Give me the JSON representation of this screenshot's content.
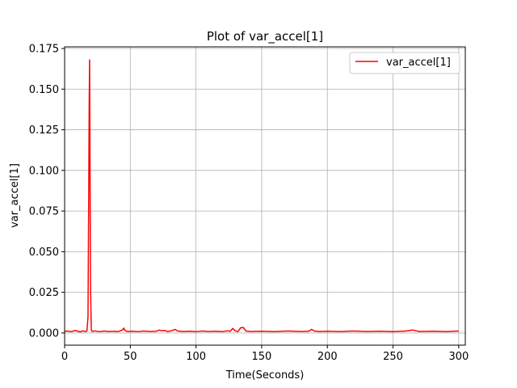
{
  "chart_data": {
    "type": "line",
    "title": "Plot of var_accel[1]",
    "xlabel": "Time(Seconds)",
    "ylabel": "var_accel[1]",
    "xlim": [
      0,
      305
    ],
    "ylim": [
      -0.0075,
      0.176
    ],
    "xticks": [
      0,
      50,
      100,
      150,
      200,
      250,
      300
    ],
    "xtick_labels": [
      "0",
      "50",
      "100",
      "150",
      "200",
      "250",
      "300"
    ],
    "yticks": [
      0.0,
      0.025,
      0.05,
      0.075,
      0.1,
      0.125,
      0.15,
      0.175
    ],
    "ytick_labels": [
      "0.000",
      "0.025",
      "0.050",
      "0.075",
      "0.100",
      "0.125",
      "0.150",
      "0.175"
    ],
    "grid": true,
    "legend_position": "top-right",
    "series": [
      {
        "name": "var_accel[1]",
        "color": "#ff0000",
        "x": [
          0,
          2,
          5,
          8,
          10,
          12,
          14,
          16,
          17,
          17.8,
          18.3,
          18.7,
          19,
          19.3,
          19.7,
          20.3,
          21,
          23,
          26,
          30,
          34,
          38,
          40,
          42,
          44,
          45,
          46,
          48,
          52,
          56,
          60,
          65,
          70,
          72,
          74,
          76,
          78,
          80,
          82,
          84,
          86,
          90,
          95,
          100,
          105,
          110,
          115,
          120,
          124,
          126,
          128,
          130,
          132,
          134,
          136,
          138,
          142,
          150,
          160,
          170,
          180,
          186,
          188,
          190,
          194,
          200,
          210,
          220,
          230,
          240,
          250,
          260,
          265,
          270,
          280,
          290,
          300
        ],
        "y": [
          0.001,
          0.0012,
          0.0008,
          0.0015,
          0.0011,
          0.0007,
          0.0013,
          0.0009,
          0.0012,
          0.01,
          0.08,
          0.14,
          0.168,
          0.11,
          0.03,
          0.002,
          0.0009,
          0.0013,
          0.0008,
          0.0012,
          0.0009,
          0.0011,
          0.0008,
          0.0012,
          0.0018,
          0.003,
          0.0015,
          0.0009,
          0.0011,
          0.0008,
          0.0012,
          0.0009,
          0.0011,
          0.0018,
          0.0013,
          0.0016,
          0.0009,
          0.0011,
          0.0015,
          0.0022,
          0.0012,
          0.0009,
          0.0011,
          0.0008,
          0.0012,
          0.0009,
          0.0011,
          0.0008,
          0.0013,
          0.001,
          0.0028,
          0.0012,
          0.0009,
          0.0032,
          0.0034,
          0.0012,
          0.0009,
          0.0011,
          0.0008,
          0.0012,
          0.0009,
          0.0011,
          0.0022,
          0.0012,
          0.0009,
          0.0011,
          0.0008,
          0.0012,
          0.0009,
          0.0011,
          0.0008,
          0.0012,
          0.0018,
          0.0009,
          0.0011,
          0.0008,
          0.0012
        ]
      }
    ]
  }
}
